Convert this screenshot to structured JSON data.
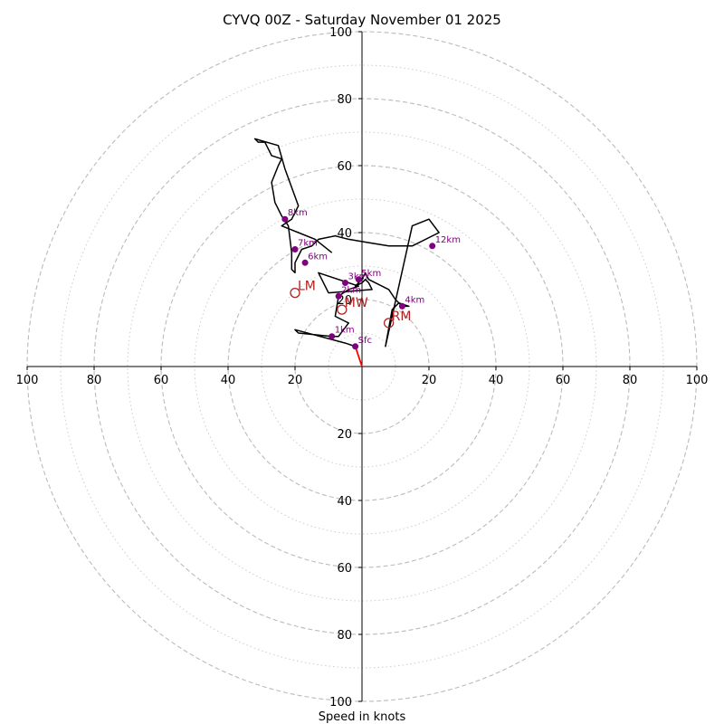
{
  "chart_data": {
    "type": "line",
    "title": "CYVQ 00Z - Saturday November 01 2025",
    "xlabel": "Speed in knots",
    "xlim": [
      -100,
      100
    ],
    "ylim": [
      -100,
      100
    ],
    "rings_major": [
      20,
      40,
      60,
      80,
      100
    ],
    "rings_minor": [
      10,
      30,
      50,
      70,
      90
    ],
    "x_tick_labels": [
      "100",
      "80",
      "60",
      "40",
      "20",
      "20",
      "40",
      "60",
      "80",
      "100"
    ],
    "x_tick_values": [
      -100,
      -80,
      -60,
      -40,
      -20,
      20,
      40,
      60,
      80,
      100
    ],
    "y_tick_labels": [
      "100",
      "80",
      "60",
      "40",
      "20",
      "20",
      "40",
      "60",
      "80",
      "100"
    ],
    "y_tick_values": [
      100,
      80,
      60,
      40,
      20,
      -20,
      -40,
      -60,
      -80,
      -100
    ],
    "hodograph_trace": {
      "u": [
        -2,
        -5,
        -20,
        -20,
        -19,
        -9,
        -7,
        -4,
        -8,
        -7,
        -4,
        -1,
        -13,
        -10,
        3,
        2,
        1,
        0,
        -2,
        0,
        1,
        2,
        8,
        10,
        12,
        14,
        11,
        9,
        7,
        9,
        15,
        20,
        23,
        15,
        8,
        2,
        -4,
        -8,
        -13,
        -15,
        -18,
        -20,
        -20,
        -20,
        -21,
        -21,
        -22,
        -24,
        -26,
        -27,
        -25,
        -24,
        -27,
        -29,
        -31,
        -32,
        -25,
        -23,
        -19,
        -20,
        -21,
        -24,
        -19,
        -14,
        -9
      ],
      "v": [
        6,
        7,
        11,
        11,
        10,
        9,
        9,
        13,
        15,
        21,
        23,
        24,
        28,
        22,
        23,
        25,
        26,
        25,
        24,
        26,
        28,
        26,
        23,
        20,
        18,
        18,
        19,
        17,
        6,
        15,
        42,
        44,
        40,
        36,
        36,
        37,
        38,
        39,
        38,
        36,
        35,
        31,
        28,
        28,
        29,
        34,
        42,
        45,
        49,
        55,
        60,
        62,
        63,
        67,
        67,
        68,
        66,
        59,
        48,
        46,
        44,
        42,
        40,
        38,
        34
      ]
    },
    "height_markers": [
      {
        "label": "Sfc",
        "u": -2,
        "v": 6
      },
      {
        "label": "1km",
        "u": -9,
        "v": 9
      },
      {
        "label": "2km",
        "u": -7,
        "v": 21
      },
      {
        "label": "3km",
        "u": -5,
        "v": 25
      },
      {
        "label": "5km",
        "u": -1,
        "v": 26
      },
      {
        "label": "4km",
        "u": 12,
        "v": 18
      },
      {
        "label": "6km",
        "u": -17,
        "v": 31
      },
      {
        "label": "7km",
        "u": -20,
        "v": 35
      },
      {
        "label": "8km",
        "u": -23,
        "v": 44
      },
      {
        "label": "12km",
        "u": 21,
        "v": 36
      }
    ],
    "storm_motion_line": {
      "u": [
        0,
        -2
      ],
      "v": [
        0,
        6
      ]
    },
    "motion_markers": [
      {
        "label": "LM",
        "u": -20,
        "v": 22
      },
      {
        "label": "MW",
        "u": -6,
        "v": 17
      },
      {
        "label": "RM",
        "u": 8,
        "v": 13
      }
    ],
    "colors": {
      "trace": "#000000",
      "height_marker": "#800080",
      "motion": "#b22222",
      "storm_line": "#ff0000",
      "ring": "#bbbbbb",
      "axis": "#000000"
    }
  }
}
